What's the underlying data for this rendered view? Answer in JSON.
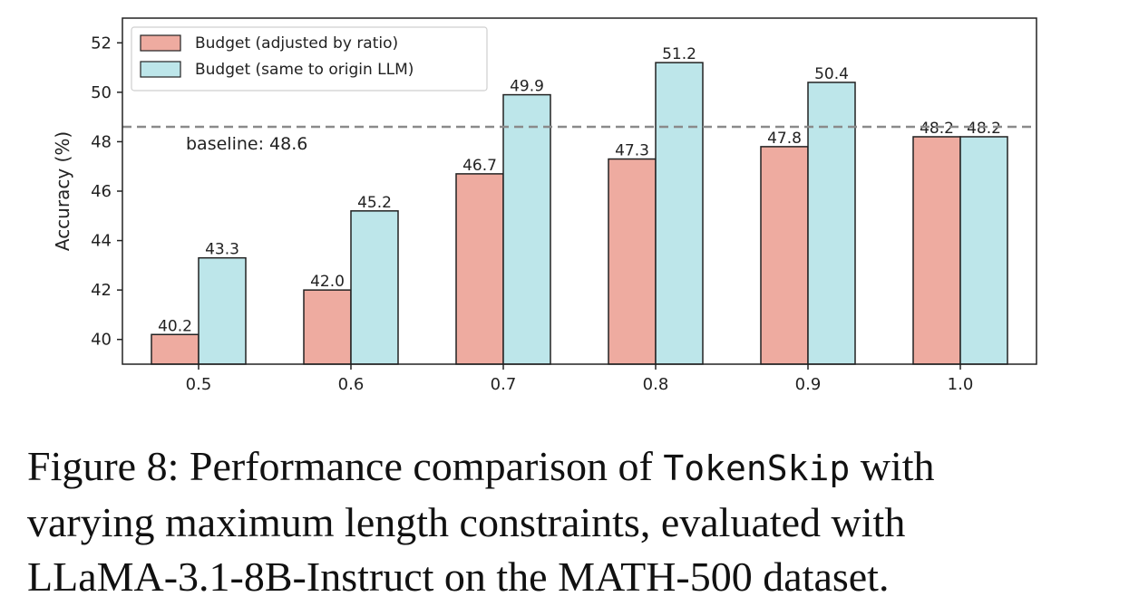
{
  "chart_data": {
    "type": "bar",
    "categories": [
      "0.5",
      "0.6",
      "0.7",
      "0.8",
      "0.9",
      "1.0"
    ],
    "series": [
      {
        "name": "Budget (adjusted by ratio)",
        "values": [
          40.2,
          42.0,
          46.7,
          47.3,
          47.8,
          48.2
        ],
        "labels": [
          "40.2",
          "42.0",
          "46.7",
          "47.3",
          "47.8",
          "48.2"
        ],
        "color": "#EEABA0"
      },
      {
        "name": "Budget (same to origin LLM)",
        "values": [
          43.3,
          45.2,
          49.9,
          51.2,
          50.4,
          48.2
        ],
        "labels": [
          "43.3",
          "45.2",
          "49.9",
          "51.2",
          "50.4",
          "48.2"
        ],
        "color": "#BDE6EA"
      }
    ],
    "xlabel": "",
    "ylabel": "Accuracy (%)",
    "ylim": [
      39,
      53
    ],
    "yticks": [
      "40",
      "42",
      "44",
      "46",
      "48",
      "50",
      "52"
    ],
    "baseline": {
      "value": 48.6,
      "label": "baseline: 48.6"
    },
    "legend_position": "top-left",
    "grid": false
  },
  "caption": {
    "line1_prefix": "Figure 8: Performance comparison of ",
    "line1_mono": "TokenSkip",
    "line1_suffix": " with",
    "line2": "varying maximum length constraints, evaluated with",
    "line3": "LLaMA-3.1-8B-Instruct on the MATH-500 dataset."
  }
}
